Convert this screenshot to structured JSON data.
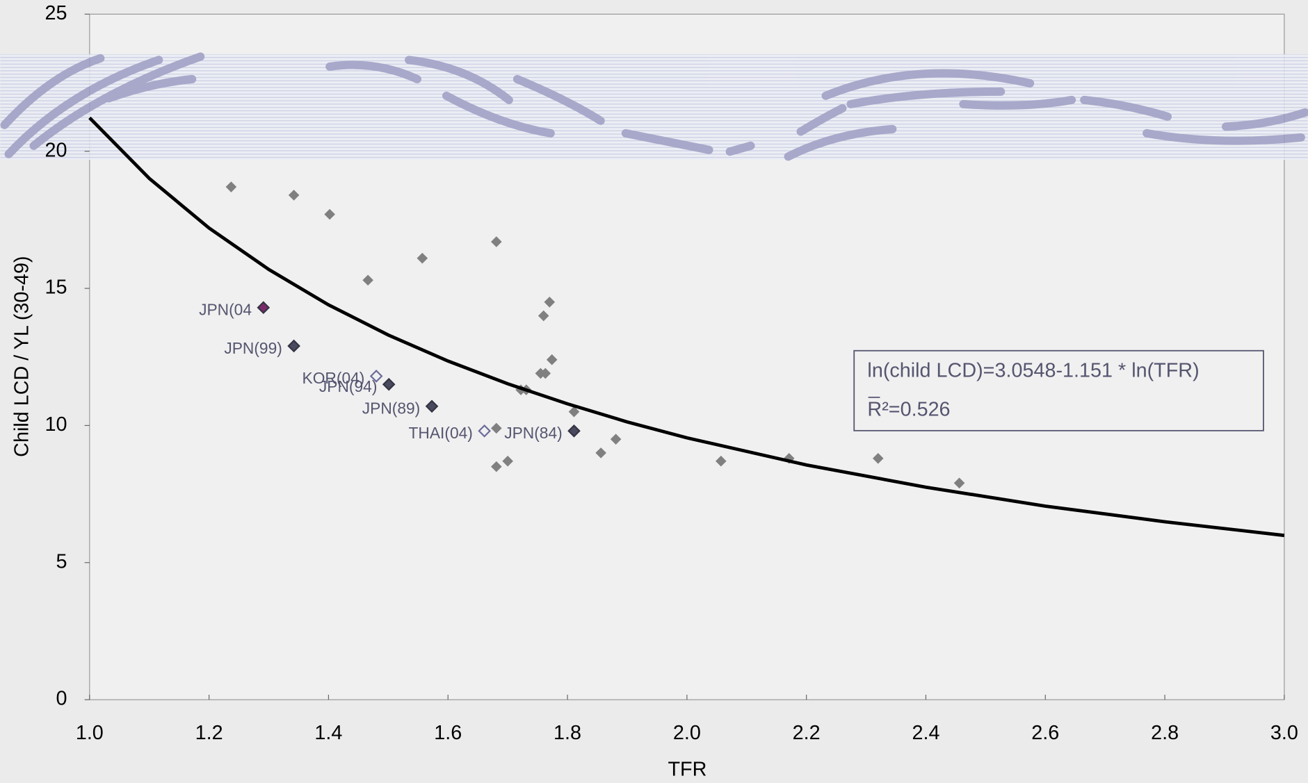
{
  "chart_data": {
    "type": "scatter",
    "x_label": "TFR",
    "y_label": "Child LCD / YL (30-49)",
    "annotation": [
      "ln(child LCD)=3.0548-1.151 * ln(TFR)",
      "R²=0.526"
    ],
    "xlim": [
      1.0,
      3.0
    ],
    "xticks": [
      {
        "value": 1.0,
        "label": "1.0"
      },
      {
        "value": 1.2,
        "label": "1.2"
      },
      {
        "value": 1.4,
        "label": "1.4"
      },
      {
        "value": 1.6,
        "label": "1.6"
      },
      {
        "value": 1.8,
        "label": "1.8"
      },
      {
        "value": 2.0,
        "label": "2.0"
      },
      {
        "value": 2.2,
        "label": "2.2"
      },
      {
        "value": 2.4,
        "label": "2.4"
      },
      {
        "value": 2.6,
        "label": "2.6"
      },
      {
        "value": 2.8,
        "label": "2.8"
      },
      {
        "value": 3.0,
        "label": "3.0"
      }
    ],
    "ylim": [
      0,
      25
    ],
    "yticks": [
      0,
      5,
      10,
      15,
      20,
      25
    ],
    "grid": false,
    "series": [
      {
        "type": "scatter",
        "color": "#808080",
        "x": [
          1.237,
          1.342,
          1.402,
          1.466,
          1.557,
          1.681,
          1.77,
          1.76,
          1.774,
          1.755,
          1.763,
          1.722,
          1.731,
          1.811,
          1.681,
          1.881,
          1.856,
          1.7,
          1.681,
          2.057,
          2.171,
          2.32,
          2.456
        ],
        "values": [
          18.7,
          18.4,
          17.7,
          15.3,
          16.1,
          16.7,
          14.5,
          14.0,
          12.4,
          11.9,
          11.9,
          11.3,
          11.3,
          10.5,
          9.9,
          9.5,
          9.0,
          8.7,
          8.5,
          8.7,
          8.8,
          8.8,
          7.9
        ]
      },
      {
        "type": "scatter",
        "color": "#333344",
        "x": [
          1.291,
          1.342,
          1.48,
          1.501,
          1.573,
          1.661,
          1.811
        ],
        "values": [
          14.3,
          12.9,
          11.8,
          11.5,
          10.7,
          9.8,
          9.8
        ],
        "labels": [
          "JPN(04",
          "JPN(99)",
          "KOR(04)",
          "JPN(94)",
          "JPN(89)",
          "THAI(04)",
          "JPN(84)"
        ],
        "fills": [
          "#7a2a6a",
          "#4a4a5e",
          "#f0f0f0",
          "#4a4a5e",
          "#4a4a5e",
          "#f0f0f0",
          "#4a4a5e"
        ]
      },
      {
        "type": "line",
        "color": "#000000",
        "x": [
          1.0,
          1.1,
          1.2,
          1.3,
          1.4,
          1.5,
          1.6,
          1.7,
          1.8,
          1.9,
          2.0,
          2.2,
          2.4,
          2.6,
          2.8,
          3.0
        ],
        "values": [
          21.22,
          19.01,
          17.2,
          15.69,
          14.4,
          13.3,
          12.35,
          11.52,
          10.79,
          10.13,
          9.55,
          8.56,
          7.75,
          7.06,
          6.49,
          5.99
        ]
      }
    ]
  }
}
